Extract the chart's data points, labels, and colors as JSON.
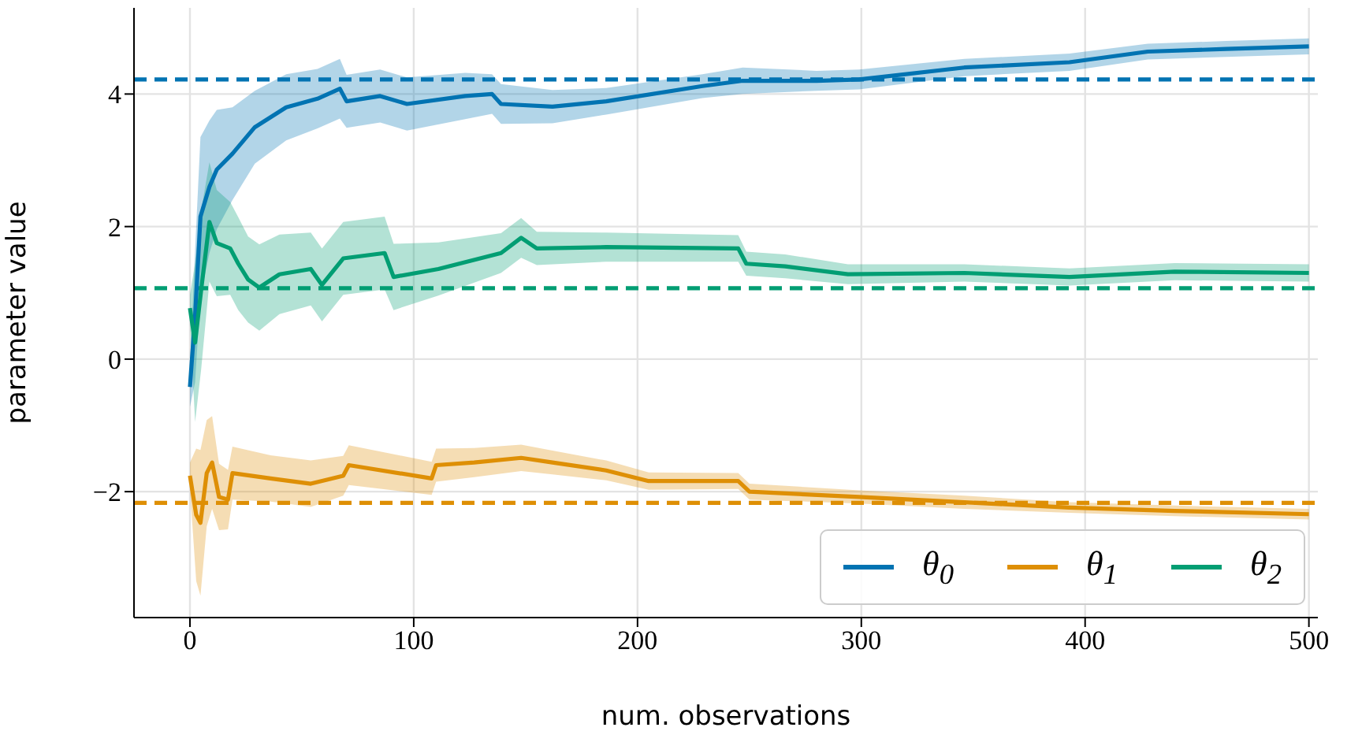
{
  "chart_data": {
    "type": "line",
    "xlabel": "num. observations",
    "ylabel": "parameter value",
    "xlim": [
      -25,
      504
    ],
    "ylim": [
      -3.9,
      5.3
    ],
    "xticks": [
      0,
      100,
      200,
      300,
      400,
      500
    ],
    "yticks": [
      {
        "value": -2,
        "label": "−2"
      },
      0,
      2,
      4
    ],
    "grid": true,
    "legend": "bottom right",
    "series": [
      {
        "name": "θ$_{0}$",
        "color": "#0173b2",
        "x": [
          0,
          2.3,
          4.7,
          8.7,
          12,
          19,
          29,
          43,
          57,
          67,
          70,
          85,
          97,
          123,
          135,
          139,
          162,
          186,
          229,
          247,
          280,
          299,
          346,
          393,
          428,
          463,
          500
        ],
        "values": [
          -0.42,
          0.65,
          2.15,
          2.6,
          2.86,
          3.1,
          3.5,
          3.8,
          3.93,
          4.08,
          3.89,
          3.97,
          3.85,
          3.97,
          4.0,
          3.85,
          3.81,
          3.89,
          4.12,
          4.2,
          4.2,
          4.22,
          4.4,
          4.48,
          4.64,
          4.68,
          4.72
        ],
        "lower": [
          -0.72,
          -0.35,
          0.95,
          1.6,
          1.96,
          2.4,
          2.95,
          3.3,
          3.48,
          3.63,
          3.49,
          3.57,
          3.45,
          3.62,
          3.7,
          3.55,
          3.56,
          3.69,
          3.94,
          4.0,
          4.05,
          4.07,
          4.27,
          4.35,
          4.52,
          4.56,
          4.6
        ],
        "upper": [
          -0.12,
          1.65,
          3.35,
          3.6,
          3.76,
          3.8,
          4.05,
          4.3,
          4.38,
          4.53,
          4.29,
          4.37,
          4.25,
          4.32,
          4.3,
          4.15,
          4.06,
          4.09,
          4.3,
          4.4,
          4.35,
          4.37,
          4.53,
          4.61,
          4.76,
          4.8,
          4.84
        ]
      },
      {
        "name": "θ$_{1}$",
        "color": "#de8f05",
        "x": [
          0,
          2.8,
          4.7,
          7.5,
          9.9,
          13,
          17,
          19,
          36,
          54,
          68.5,
          71,
          108,
          110,
          127,
          148,
          162,
          186,
          205,
          245,
          250,
          299,
          346,
          393,
          440,
          500
        ],
        "values": [
          -1.76,
          -2.35,
          -2.47,
          -1.72,
          -1.56,
          -2.08,
          -2.12,
          -1.72,
          -1.8,
          -1.88,
          -1.76,
          -1.6,
          -1.8,
          -1.6,
          -1.56,
          -1.49,
          -1.56,
          -1.68,
          -1.84,
          -1.84,
          -2.0,
          -2.08,
          -2.16,
          -2.24,
          -2.29,
          -2.34
        ],
        "lower": [
          -1.96,
          -3.35,
          -3.57,
          -2.52,
          -2.26,
          -2.58,
          -2.57,
          -2.12,
          -2.15,
          -2.23,
          -2.06,
          -1.9,
          -2.05,
          -1.85,
          -1.78,
          -1.69,
          -1.74,
          -1.83,
          -1.97,
          -1.96,
          -2.12,
          -2.18,
          -2.26,
          -2.32,
          -2.37,
          -2.42
        ],
        "upper": [
          -1.56,
          -1.35,
          -1.37,
          -0.92,
          -0.86,
          -1.58,
          -1.67,
          -1.32,
          -1.45,
          -1.53,
          -1.46,
          -1.3,
          -1.55,
          -1.35,
          -1.34,
          -1.29,
          -1.38,
          -1.53,
          -1.71,
          -1.72,
          -1.88,
          -1.98,
          -2.06,
          -2.16,
          -2.21,
          -2.26
        ]
      },
      {
        "name": "θ$_{2}$",
        "color": "#029e73",
        "x": [
          0,
          2.3,
          5,
          8.7,
          12,
          18,
          21.6,
          26,
          31,
          40,
          54,
          59,
          68.5,
          87,
          91,
          111,
          139,
          148,
          155,
          186,
          245,
          248.6,
          266,
          294,
          346,
          393,
          440,
          500
        ],
        "values": [
          0.77,
          0.25,
          1.04,
          2.07,
          1.75,
          1.67,
          1.44,
          1.2,
          1.08,
          1.28,
          1.36,
          1.12,
          1.52,
          1.6,
          1.24,
          1.36,
          1.6,
          1.83,
          1.67,
          1.69,
          1.67,
          1.44,
          1.4,
          1.28,
          1.3,
          1.24,
          1.32,
          1.3
        ],
        "lower": [
          0.57,
          -0.95,
          -0.16,
          1.17,
          0.95,
          0.97,
          0.74,
          0.55,
          0.43,
          0.68,
          0.81,
          0.57,
          0.97,
          1.05,
          0.74,
          0.96,
          1.3,
          1.53,
          1.42,
          1.47,
          1.47,
          1.26,
          1.22,
          1.13,
          1.17,
          1.11,
          1.19,
          1.17
        ],
        "upper": [
          0.97,
          1.45,
          2.24,
          2.97,
          2.55,
          2.37,
          2.14,
          1.85,
          1.73,
          1.88,
          1.91,
          1.67,
          2.07,
          2.15,
          1.74,
          1.76,
          1.9,
          2.13,
          1.92,
          1.91,
          1.87,
          1.62,
          1.58,
          1.43,
          1.43,
          1.37,
          1.45,
          1.43
        ]
      }
    ],
    "ref_lines": [
      {
        "axis": "y",
        "value": 4.22,
        "color": "#0173b2",
        "line_style": "dashed"
      },
      {
        "axis": "y",
        "value": -2.17,
        "color": "#de8f05",
        "line_style": "dashed"
      },
      {
        "axis": "y",
        "value": 1.07,
        "color": "#029e73",
        "line_style": "dashed"
      }
    ]
  }
}
